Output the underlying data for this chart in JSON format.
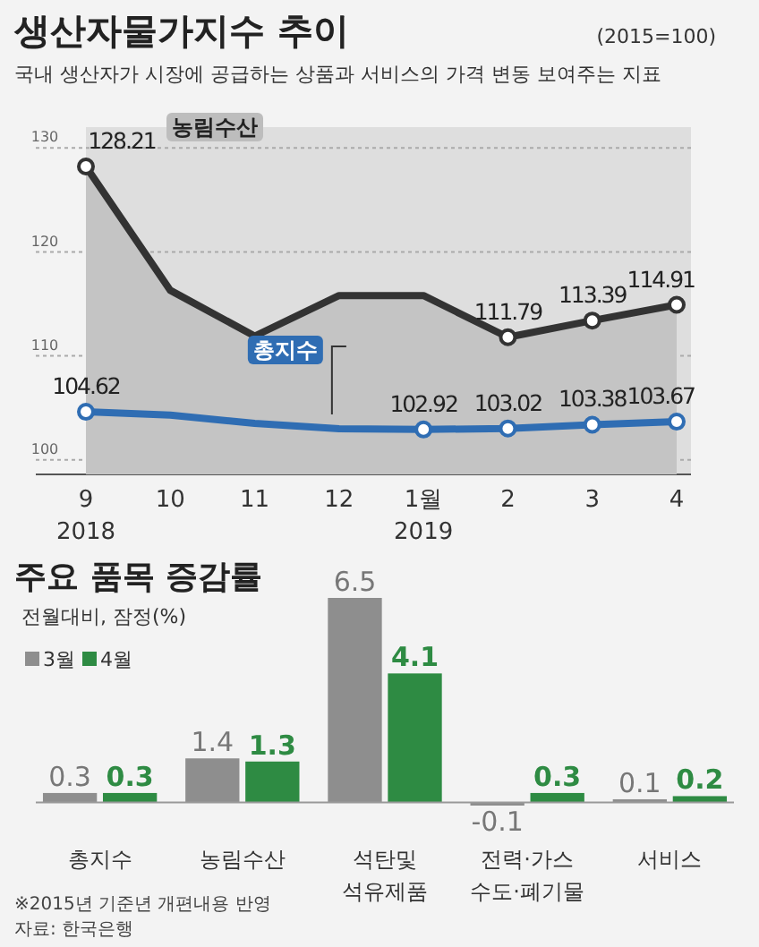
{
  "chart_data": [
    {
      "type": "line",
      "title": "생산자물가지수 추이",
      "subtitle": "국내 생산자가 시장에 공급하는 상품과 서비스의 가격 변동 보여주는 지표",
      "ylabel": "(2015=100)",
      "categories": [
        "9\n2018",
        "10",
        "11",
        "12",
        "1월\n2019",
        "2",
        "3",
        "4"
      ],
      "series": [
        {
          "name": "농림수산",
          "type": "area",
          "color": "#333333",
          "values": [
            128.21,
            116.3,
            111.9,
            115.8,
            115.8,
            111.79,
            113.39,
            114.91
          ],
          "value_labels": [
            "128.21",
            null,
            null,
            null,
            null,
            "111.79",
            "113.39",
            "114.91"
          ]
        },
        {
          "name": "총지수",
          "type": "line",
          "color": "#2f6db3",
          "values": [
            104.62,
            104.3,
            103.5,
            103.0,
            102.92,
            103.02,
            103.38,
            103.67
          ],
          "value_labels": [
            "104.62",
            null,
            null,
            null,
            "102.92",
            "103.02",
            "103.38",
            "103.67"
          ]
        }
      ],
      "ylim": [
        98.6,
        132
      ],
      "yticks": [
        100,
        110,
        120,
        130
      ],
      "grid": "y",
      "marker": "circle"
    },
    {
      "type": "bar",
      "title": "주요 품목 증감률",
      "subtitle": "전월대비, 잠정(%)",
      "categories": [
        "총지수",
        "농림수산",
        "석탄및\n석유제품",
        "전력·가스\n수도·폐기물",
        "서비스"
      ],
      "series": [
        {
          "name": "3월",
          "color": "#8e8e8e",
          "values": [
            0.3,
            1.4,
            6.5,
            -0.1,
            0.1
          ]
        },
        {
          "name": "4월",
          "color": "#2e8b43",
          "values": [
            0.3,
            1.3,
            4.1,
            0.3,
            0.2
          ]
        }
      ],
      "data_labels": true,
      "legend": "top left",
      "annotations": [
        "※2015년 기준년 개편내용 반영",
        "자료: 한국은행"
      ]
    }
  ]
}
